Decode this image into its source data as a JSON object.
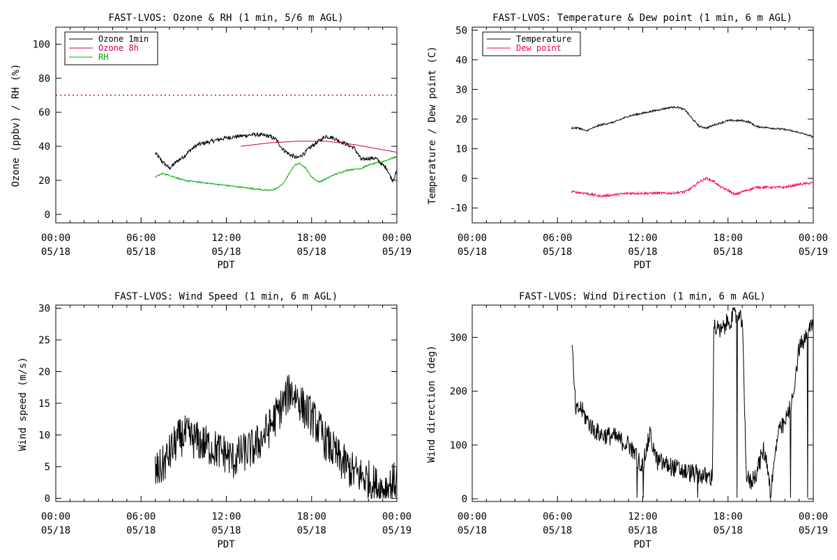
{
  "chart_data": [
    {
      "type": "line",
      "title": "FAST-LVOS: Ozone & RH (1 min, 5/6 m AGL)",
      "xlabel": "PDT",
      "ylabel": "Ozone (ppbv) / RH (%)",
      "xlim_hours": [
        0,
        24
      ],
      "ylim": [
        -5,
        110
      ],
      "yticks": [
        0,
        20,
        40,
        60,
        80,
        100
      ],
      "xticks": [
        {
          "hour": 0,
          "time": "00:00",
          "date": "05/18"
        },
        {
          "hour": 6,
          "time": "06:00",
          "date": "05/18"
        },
        {
          "hour": 12,
          "time": "12:00",
          "date": "05/18"
        },
        {
          "hour": 18,
          "time": "18:00",
          "date": "05/18"
        },
        {
          "hour": 24,
          "time": "00:00",
          "date": "05/19"
        }
      ],
      "legend_position": "top-left",
      "reference_line": {
        "y": 70,
        "style": "dotted",
        "color": "#ff0000"
      },
      "series": [
        {
          "name": "Ozone 1min",
          "color": "#000000",
          "noise": 1.2,
          "points": [
            [
              7.0,
              36
            ],
            [
              7.5,
              31
            ],
            [
              8.0,
              27
            ],
            [
              8.5,
              31
            ],
            [
              9.0,
              34
            ],
            [
              9.5,
              38
            ],
            [
              10.0,
              41
            ],
            [
              11.0,
              43
            ],
            [
              12.0,
              45
            ],
            [
              13.0,
              46
            ],
            [
              14.0,
              47
            ],
            [
              15.0,
              46
            ],
            [
              15.5,
              44
            ],
            [
              16.0,
              38
            ],
            [
              16.5,
              35
            ],
            [
              17.0,
              33
            ],
            [
              17.5,
              36
            ],
            [
              18.0,
              40
            ],
            [
              18.5,
              43
            ],
            [
              19.0,
              46
            ],
            [
              19.5,
              45
            ],
            [
              20.0,
              43
            ],
            [
              20.5,
              41
            ],
            [
              21.0,
              39
            ],
            [
              21.5,
              32
            ],
            [
              22.0,
              33
            ],
            [
              22.5,
              33
            ],
            [
              23.0,
              29
            ],
            [
              23.3,
              27
            ],
            [
              23.5,
              23
            ],
            [
              23.7,
              20
            ],
            [
              24.0,
              25
            ]
          ]
        },
        {
          "name": "Ozone 8h",
          "color": "#cc0044",
          "noise": 0,
          "points": [
            [
              13.0,
              40
            ],
            [
              14.0,
              41
            ],
            [
              15.0,
              42
            ],
            [
              16.0,
              42.5
            ],
            [
              17.0,
              43
            ],
            [
              18.0,
              43
            ],
            [
              19.0,
              43
            ],
            [
              20.0,
              42
            ],
            [
              21.0,
              41
            ],
            [
              22.0,
              39.5
            ],
            [
              23.0,
              38
            ],
            [
              24.0,
              36.5
            ]
          ]
        },
        {
          "name": "RH",
          "color": "#00aa00",
          "noise": 0.4,
          "points": [
            [
              7.0,
              22
            ],
            [
              7.5,
              24
            ],
            [
              8.0,
              23
            ],
            [
              9.0,
              20
            ],
            [
              10.0,
              19
            ],
            [
              11.0,
              18
            ],
            [
              12.0,
              17
            ],
            [
              13.0,
              16
            ],
            [
              14.0,
              15
            ],
            [
              15.0,
              14
            ],
            [
              15.5,
              15
            ],
            [
              16.0,
              18
            ],
            [
              16.5,
              25
            ],
            [
              16.8,
              29
            ],
            [
              17.2,
              30
            ],
            [
              17.6,
              27
            ],
            [
              18.0,
              22
            ],
            [
              18.5,
              19
            ],
            [
              18.8,
              20
            ],
            [
              19.5,
              23
            ],
            [
              20.5,
              26
            ],
            [
              21.5,
              27
            ],
            [
              22.0,
              29
            ],
            [
              23.0,
              31
            ],
            [
              24.0,
              34
            ]
          ]
        }
      ]
    },
    {
      "type": "line",
      "title": "FAST-LVOS: Temperature & Dew point (1 min, 6 m AGL)",
      "xlabel": "PDT",
      "ylabel": "Temperature / Dew point (C)",
      "xlim_hours": [
        0,
        24
      ],
      "ylim": [
        -15,
        51
      ],
      "yticks": [
        -10,
        0,
        10,
        20,
        30,
        40,
        50
      ],
      "xticks": [
        {
          "hour": 0,
          "time": "00:00",
          "date": "05/18"
        },
        {
          "hour": 6,
          "time": "06:00",
          "date": "05/18"
        },
        {
          "hour": 12,
          "time": "12:00",
          "date": "05/18"
        },
        {
          "hour": 18,
          "time": "18:00",
          "date": "05/18"
        },
        {
          "hour": 24,
          "time": "00:00",
          "date": "05/19"
        }
      ],
      "legend_position": "top-left",
      "series": [
        {
          "name": "Temperature",
          "color": "#000000",
          "noise": 0.3,
          "points": [
            [
              7.0,
              17
            ],
            [
              7.5,
              17
            ],
            [
              8.0,
              16
            ],
            [
              8.5,
              17
            ],
            [
              9.0,
              18
            ],
            [
              10.0,
              19
            ],
            [
              11.0,
              21
            ],
            [
              12.0,
              22
            ],
            [
              13.0,
              23
            ],
            [
              14.0,
              24
            ],
            [
              14.5,
              24
            ],
            [
              15.0,
              23
            ],
            [
              15.5,
              20
            ],
            [
              16.0,
              17.5
            ],
            [
              16.5,
              17
            ],
            [
              17.0,
              18
            ],
            [
              18.0,
              19.5
            ],
            [
              19.0,
              19.5
            ],
            [
              19.5,
              19
            ],
            [
              20.0,
              17.5
            ],
            [
              21.0,
              17
            ],
            [
              22.0,
              16.5
            ],
            [
              23.0,
              15.5
            ],
            [
              24.0,
              14
            ]
          ]
        },
        {
          "name": "Dew point",
          "color": "#ff0044",
          "noise": 0.4,
          "points": [
            [
              7.0,
              -4.5
            ],
            [
              8.0,
              -5
            ],
            [
              9.0,
              -6
            ],
            [
              10.0,
              -5.5
            ],
            [
              11.0,
              -5
            ],
            [
              12.0,
              -5
            ],
            [
              13.0,
              -5
            ],
            [
              14.0,
              -5
            ],
            [
              15.0,
              -4.5
            ],
            [
              15.5,
              -3
            ],
            [
              16.0,
              -1
            ],
            [
              16.5,
              0
            ],
            [
              17.0,
              -1
            ],
            [
              17.5,
              -3
            ],
            [
              18.0,
              -4
            ],
            [
              18.5,
              -5.5
            ],
            [
              19.0,
              -4.5
            ],
            [
              20.0,
              -3
            ],
            [
              21.0,
              -3
            ],
            [
              22.0,
              -3
            ],
            [
              23.0,
              -2
            ],
            [
              24.0,
              -1.5
            ]
          ]
        }
      ]
    },
    {
      "type": "line",
      "title": "FAST-LVOS: Wind Speed (1 min, 6 m AGL)",
      "xlabel": "PDT",
      "ylabel": "Wind speed (m/s)",
      "xlim_hours": [
        0,
        24
      ],
      "ylim": [
        -0.5,
        30.5
      ],
      "yticks": [
        0,
        5,
        10,
        15,
        20,
        25,
        30
      ],
      "xticks": [
        {
          "hour": 0,
          "time": "00:00",
          "date": "05/18"
        },
        {
          "hour": 6,
          "time": "06:00",
          "date": "05/18"
        },
        {
          "hour": 12,
          "time": "12:00",
          "date": "05/18"
        },
        {
          "hour": 18,
          "time": "18:00",
          "date": "05/18"
        },
        {
          "hour": 24,
          "time": "00:00",
          "date": "05/19"
        }
      ],
      "series": [
        {
          "name": "",
          "color": "#000000",
          "noise": 3.2,
          "points": [
            [
              7.0,
              4
            ],
            [
              7.5,
              5
            ],
            [
              8.0,
              7
            ],
            [
              8.5,
              9
            ],
            [
              9.0,
              10
            ],
            [
              10.0,
              9
            ],
            [
              11.0,
              8
            ],
            [
              12.0,
              7
            ],
            [
              12.5,
              6
            ],
            [
              13.0,
              7
            ],
            [
              14.0,
              8
            ],
            [
              15.0,
              11
            ],
            [
              16.0,
              15
            ],
            [
              16.5,
              17
            ],
            [
              17.0,
              16
            ],
            [
              17.5,
              14
            ],
            [
              18.0,
              13
            ],
            [
              18.5,
              11
            ],
            [
              19.0,
              9
            ],
            [
              20.0,
              6
            ],
            [
              21.0,
              4
            ],
            [
              22.0,
              3
            ],
            [
              22.5,
              2
            ],
            [
              23.0,
              1.5
            ],
            [
              23.5,
              2
            ],
            [
              24.0,
              3
            ]
          ]
        }
      ]
    },
    {
      "type": "line",
      "title": "FAST-LVOS: Wind Direction (1 min, 6 m AGL)",
      "xlabel": "PDT",
      "ylabel": "Wind direction (deg)",
      "xlim_hours": [
        0,
        24
      ],
      "ylim": [
        -5,
        360
      ],
      "yticks": [
        0,
        100,
        200,
        300
      ],
      "xticks": [
        {
          "hour": 0,
          "time": "00:00",
          "date": "05/18"
        },
        {
          "hour": 6,
          "time": "06:00",
          "date": "05/18"
        },
        {
          "hour": 12,
          "time": "12:00",
          "date": "05/18"
        },
        {
          "hour": 18,
          "time": "18:00",
          "date": "05/18"
        },
        {
          "hour": 24,
          "time": "00:00",
          "date": "05/19"
        }
      ],
      "series": [
        {
          "name": "",
          "color": "#000000",
          "noise": 18,
          "points": [
            [
              7.0,
              300
            ],
            [
              7.15,
              220
            ],
            [
              7.3,
              160
            ],
            [
              7.6,
              170
            ],
            [
              8.0,
              150
            ],
            [
              8.5,
              130
            ],
            [
              9.0,
              120
            ],
            [
              10.0,
              115
            ],
            [
              11.0,
              100
            ],
            [
              11.5,
              80
            ],
            [
              12.0,
              60
            ],
            [
              12.5,
              120
            ],
            [
              13.0,
              70
            ],
            [
              14.0,
              60
            ],
            [
              15.0,
              50
            ],
            [
              16.0,
              45
            ],
            [
              16.5,
              40
            ],
            [
              16.9,
              40
            ],
            [
              17.0,
              320
            ],
            [
              17.5,
              310
            ],
            [
              18.0,
              330
            ],
            [
              18.5,
              340
            ],
            [
              19.0,
              330
            ],
            [
              19.3,
              40
            ],
            [
              19.6,
              30
            ],
            [
              20.0,
              50
            ],
            [
              20.5,
              90
            ],
            [
              20.8,
              60
            ],
            [
              21.0,
              10
            ],
            [
              21.5,
              120
            ],
            [
              22.0,
              140
            ],
            [
              22.5,
              180
            ],
            [
              23.0,
              280
            ],
            [
              23.5,
              300
            ],
            [
              24.0,
              330
            ]
          ]
        }
      ]
    }
  ]
}
